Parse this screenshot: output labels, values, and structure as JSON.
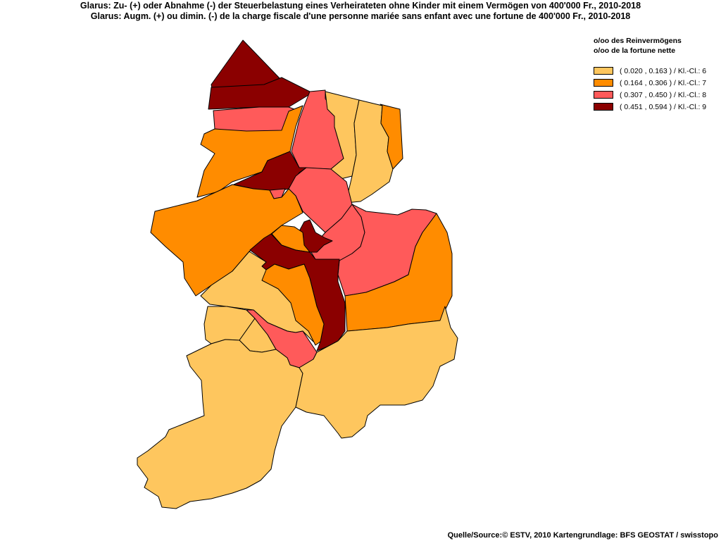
{
  "title": {
    "de": "Glarus: Zu- (+) oder Abnahme (-) der Steuerbelastung  eines Verheirateten ohne Kinder mit einem Vermögen von 400'000 Fr., 2010-2018",
    "fr": "Glarus: Augm. (+) ou dimin. (-) de la charge fiscale d'une personne mariée sans enfant avec une fortune de 400'000 Fr., 2010-2018"
  },
  "legend": {
    "title_de": "o/oo des Reinvermögens",
    "title_fr": "o/oo de la fortune nette",
    "classes": [
      {
        "label": "( 0.020 , 0.163 ) / Kl.-Cl.: 6",
        "color": "#FEC65E"
      },
      {
        "label": "( 0.164 , 0.306 ) / Kl.-Cl.: 7",
        "color": "#FF8C00"
      },
      {
        "label": "( 0.307 , 0.450 ) / Kl.-Cl.: 8",
        "color": "#FF5A5A"
      },
      {
        "label": "( 0.451 , 0.594 ) / Kl.-Cl.: 9",
        "color": "#8B0000"
      }
    ]
  },
  "map": {
    "regions": [
      {
        "name": "north-tip",
        "class": 9
      },
      {
        "name": "north-band",
        "class": 9
      },
      {
        "name": "north-pink-strip",
        "class": 8
      },
      {
        "name": "northwest-orange",
        "class": 7
      },
      {
        "name": "north-pink-central",
        "class": 8
      },
      {
        "name": "northeast-light-1",
        "class": 6
      },
      {
        "name": "northeast-light-2",
        "class": 6
      },
      {
        "name": "northeast-orange-strip",
        "class": 7
      },
      {
        "name": "darkred-inlet",
        "class": 9
      },
      {
        "name": "small-pink-notch",
        "class": 8
      },
      {
        "name": "central-pink-1",
        "class": 8
      },
      {
        "name": "west-orange-large",
        "class": 7
      },
      {
        "name": "central-pink-2",
        "class": 8
      },
      {
        "name": "east-pink",
        "class": 8
      },
      {
        "name": "east-orange",
        "class": 7
      },
      {
        "name": "small-darkred-1",
        "class": 9
      },
      {
        "name": "small-orange",
        "class": 7
      },
      {
        "name": "central-darkred-spine",
        "class": 9
      },
      {
        "name": "southwest-light-1",
        "class": 6
      },
      {
        "name": "inner-orange",
        "class": 7
      },
      {
        "name": "small-light-west",
        "class": 6
      },
      {
        "name": "small-light-2",
        "class": 6
      },
      {
        "name": "pink-diagonal",
        "class": 8
      },
      {
        "name": "south-light-large",
        "class": 6
      },
      {
        "name": "southeast-light-large",
        "class": 6
      }
    ]
  },
  "source": "Quelle/Source:© ESTV, 2010 Kartengrundlage: BFS GEOSTAT / swisstopo"
}
